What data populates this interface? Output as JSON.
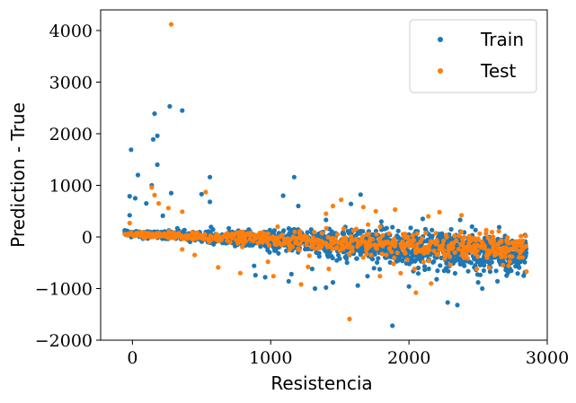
{
  "chart_data": {
    "type": "scatter",
    "title": "",
    "xlabel": "Resistencia",
    "ylabel": "Prediction - True",
    "xlim": [
      -230,
      3000
    ],
    "ylim": [
      -2000,
      4400
    ],
    "xticks": [
      0,
      1000,
      2000,
      3000
    ],
    "yticks": [
      -2000,
      -1000,
      0,
      1000,
      2000,
      3000,
      4000
    ],
    "xtick_labels": [
      "0",
      "1000",
      "2000",
      "3000"
    ],
    "ytick_labels": [
      "−2000",
      "−1000",
      "0",
      "1000",
      "2000",
      "3000",
      "4000"
    ],
    "grid": false,
    "legend_position": "top-right",
    "series": [
      {
        "name": "Train",
        "color": "#1f77b4",
        "trend": {
          "x": [
            -60,
            2850
          ],
          "y": [
            80,
            -330
          ],
          "spread": [
            40,
            380
          ]
        },
        "points": [
          [
            270,
            2530
          ],
          [
            360,
            2450
          ],
          [
            160,
            2390
          ],
          [
            180,
            1960
          ],
          [
            150,
            1890
          ],
          [
            -10,
            1690
          ],
          [
            180,
            1400
          ],
          [
            40,
            1200
          ],
          [
            560,
            1160
          ],
          [
            1170,
            1160
          ],
          [
            140,
            1000
          ],
          [
            500,
            830
          ],
          [
            280,
            850
          ],
          [
            -20,
            790
          ],
          [
            20,
            750
          ],
          [
            1090,
            800
          ],
          [
            100,
            650
          ],
          [
            560,
            680
          ],
          [
            1650,
            820
          ],
          [
            1200,
            600
          ],
          [
            1580,
            640
          ],
          [
            -20,
            420
          ],
          [
            220,
            410
          ],
          [
            2100,
            350
          ],
          [
            2370,
            330
          ],
          [
            1400,
            330
          ],
          [
            1800,
            300
          ],
          [
            890,
            -740
          ],
          [
            960,
            -780
          ],
          [
            1130,
            -860
          ],
          [
            1320,
            -1000
          ],
          [
            1400,
            -980
          ],
          [
            1880,
            -1720
          ],
          [
            2280,
            -1270
          ],
          [
            2350,
            -1320
          ],
          [
            2530,
            -1000
          ],
          [
            1450,
            -880
          ],
          [
            1700,
            -760
          ],
          [
            1300,
            -620
          ],
          [
            880,
            -560
          ],
          [
            1150,
            -720
          ],
          [
            2200,
            -820
          ],
          [
            2000,
            -960
          ],
          [
            2640,
            -860
          ],
          [
            2830,
            -750
          ],
          [
            2790,
            -520
          ],
          [
            2770,
            -460
          ],
          [
            2500,
            -880
          ],
          [
            2400,
            -560
          ],
          [
            2700,
            -640
          ],
          [
            1630,
            -940
          ]
        ]
      },
      {
        "name": "Test",
        "color": "#ff7f0e",
        "trend": {
          "x": [
            -60,
            2850
          ],
          "y": [
            60,
            -250
          ],
          "spread": [
            40,
            300
          ]
        },
        "points": [
          [
            280,
            4120
          ],
          [
            140,
            960
          ],
          [
            160,
            810
          ],
          [
            530,
            870
          ],
          [
            190,
            650
          ],
          [
            260,
            560
          ],
          [
            -20,
            270
          ],
          [
            360,
            490
          ],
          [
            1510,
            720
          ],
          [
            1450,
            600
          ],
          [
            1670,
            580
          ],
          [
            1900,
            530
          ],
          [
            2220,
            480
          ],
          [
            1760,
            500
          ],
          [
            1400,
            450
          ],
          [
            1050,
            200
          ],
          [
            2380,
            420
          ],
          [
            2140,
            400
          ],
          [
            1570,
            -1590
          ],
          [
            1420,
            -620
          ],
          [
            1020,
            -760
          ],
          [
            1220,
            -920
          ],
          [
            2050,
            -1080
          ],
          [
            2160,
            -900
          ],
          [
            2850,
            -670
          ],
          [
            2580,
            -600
          ],
          [
            2720,
            -560
          ],
          [
            2300,
            -540
          ],
          [
            780,
            -700
          ],
          [
            1790,
            -760
          ],
          [
            1940,
            -700
          ],
          [
            2490,
            -620
          ],
          [
            1270,
            -580
          ],
          [
            980,
            -480
          ],
          [
            620,
            -590
          ],
          [
            450,
            -350
          ],
          [
            2040,
            -620
          ],
          [
            360,
            -240
          ]
        ]
      }
    ]
  }
}
